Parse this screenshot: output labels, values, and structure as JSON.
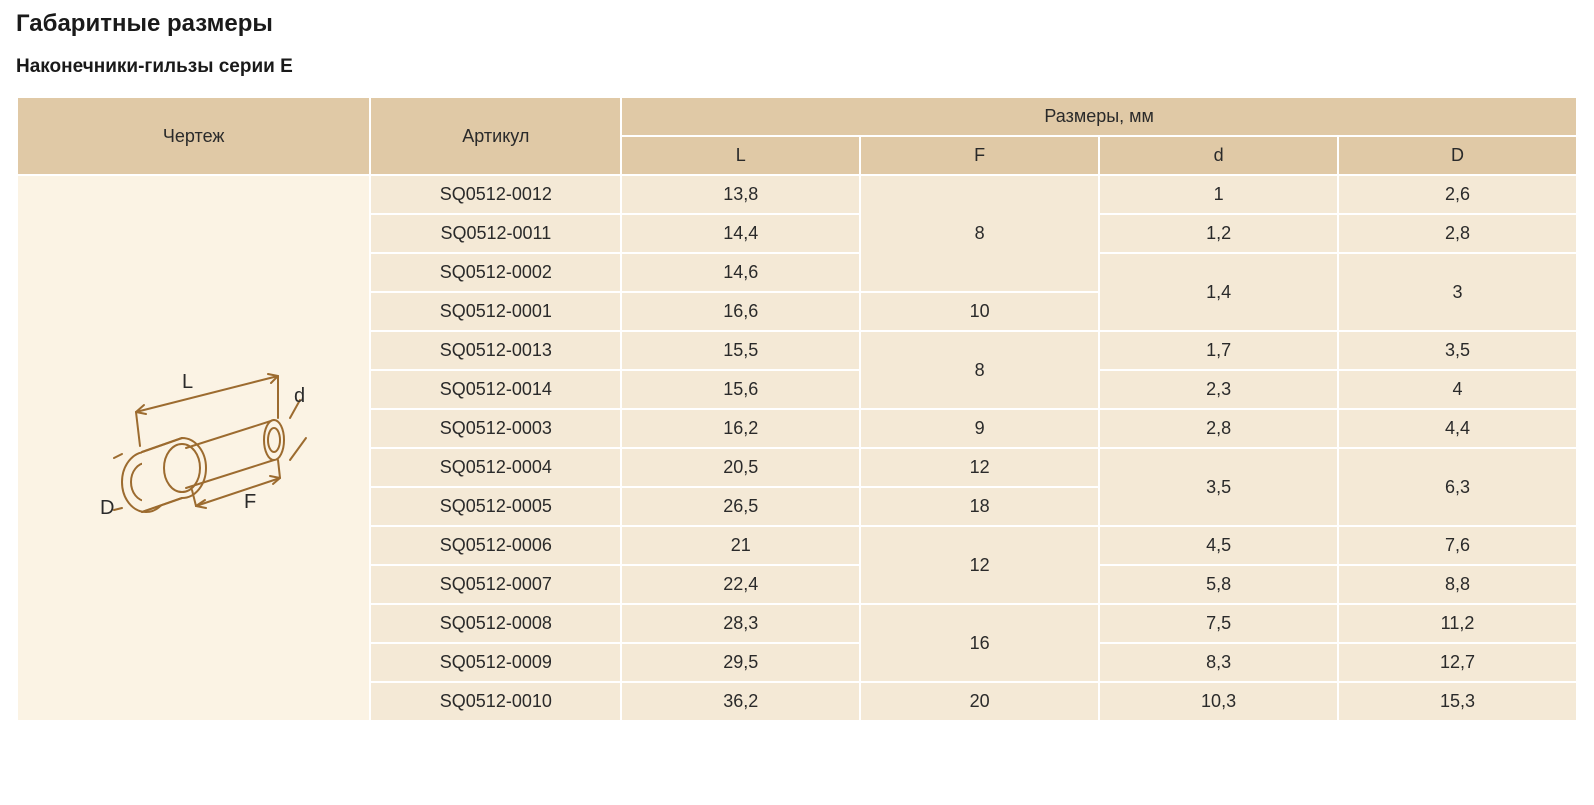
{
  "title": "Габаритные размеры",
  "subtitle": "Наконечники-гильзы серии Е",
  "headers": {
    "drawing": "Чертеж",
    "sku": "Артикул",
    "dimensions": "Размеры, мм",
    "L": "L",
    "F": "F",
    "d": "d",
    "D": "D"
  },
  "drawing": {
    "labels": {
      "L": "L",
      "F": "F",
      "d": "d",
      "D": "D"
    },
    "colors": {
      "stroke": "#9c6b2f",
      "fill": "#fbf3e4",
      "text": "#2a2a2a"
    }
  },
  "colors": {
    "header_bg": "#e0c9a6",
    "cell_bg": "#f4e9d6",
    "drawing_bg": "#fbf3e4",
    "border_gap": "#ffffff",
    "text": "#2a2a2a"
  },
  "rows": [
    {
      "sku": "SQ0512-0012",
      "L": "13,8",
      "F": "8",
      "d": "1",
      "D": "2,6",
      "F_span": 3,
      "d_span": 1,
      "D_span": 1
    },
    {
      "sku": "SQ0512-0011",
      "L": "14,4",
      "d": "1,2",
      "D": "2,8",
      "d_span": 1,
      "D_span": 1
    },
    {
      "sku": "SQ0512-0002",
      "L": "14,6",
      "d": "1,4",
      "D": "3",
      "d_span": 2,
      "D_span": 2
    },
    {
      "sku": "SQ0512-0001",
      "L": "16,6",
      "F": "10",
      "F_span": 1
    },
    {
      "sku": "SQ0512-0013",
      "L": "15,5",
      "F": "8",
      "d": "1,7",
      "D": "3,5",
      "F_span": 2,
      "d_span": 1,
      "D_span": 1
    },
    {
      "sku": "SQ0512-0014",
      "L": "15,6",
      "d": "2,3",
      "D": "4",
      "d_span": 1,
      "D_span": 1
    },
    {
      "sku": "SQ0512-0003",
      "L": "16,2",
      "F": "9",
      "d": "2,8",
      "D": "4,4",
      "F_span": 1,
      "d_span": 1,
      "D_span": 1
    },
    {
      "sku": "SQ0512-0004",
      "L": "20,5",
      "F": "12",
      "d": "3,5",
      "D": "6,3",
      "F_span": 1,
      "d_span": 2,
      "D_span": 2
    },
    {
      "sku": "SQ0512-0005",
      "L": "26,5",
      "F": "18",
      "F_span": 1
    },
    {
      "sku": "SQ0512-0006",
      "L": "21",
      "F": "12",
      "d": "4,5",
      "D": "7,6",
      "F_span": 2,
      "d_span": 1,
      "D_span": 1
    },
    {
      "sku": "SQ0512-0007",
      "L": "22,4",
      "d": "5,8",
      "D": "8,8",
      "d_span": 1,
      "D_span": 1
    },
    {
      "sku": "SQ0512-0008",
      "L": "28,3",
      "F": "16",
      "d": "7,5",
      "D": "11,2",
      "F_span": 2,
      "d_span": 1,
      "D_span": 1
    },
    {
      "sku": "SQ0512-0009",
      "L": "29,5",
      "d": "8,3",
      "D": "12,7",
      "d_span": 1,
      "D_span": 1
    },
    {
      "sku": "SQ0512-0010",
      "L": "36,2",
      "F": "20",
      "d": "10,3",
      "D": "15,3",
      "F_span": 1,
      "d_span": 1,
      "D_span": 1
    }
  ]
}
